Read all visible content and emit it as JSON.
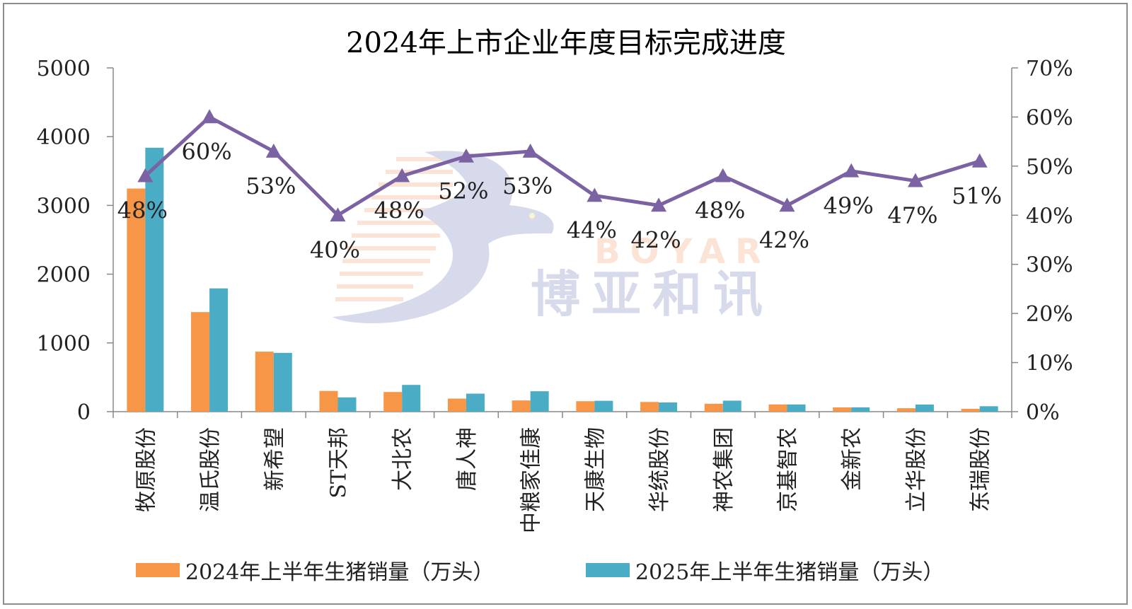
{
  "chart_data": {
    "type": "bar",
    "title": "2024年上市企业年度目标完成进度",
    "categories": [
      "牧原股份",
      "温氏股份",
      "新希望",
      "ST天邦",
      "大北农",
      "唐人神",
      "中粮家佳康",
      "天康生物",
      "华统股份",
      "神农集团",
      "京基智农",
      "金新农",
      "立华股份",
      "东瑞股份"
    ],
    "series": [
      {
        "name": "2024年上半年生猪销量（万头）",
        "type": "bar",
        "axis": "left",
        "color": "#F79646",
        "values": [
          3245,
          1448,
          873,
          301,
          286,
          190,
          163,
          152,
          141,
          115,
          105,
          62,
          50,
          41
        ]
      },
      {
        "name": "2025年上半年生猪销量（万头）",
        "type": "bar",
        "axis": "left",
        "color": "#4BACC6",
        "values": [
          3839,
          1793,
          855,
          208,
          389,
          262,
          297,
          158,
          134,
          160,
          105,
          63,
          104,
          79
        ]
      },
      {
        "type": "line",
        "axis": "right",
        "color": "#7B62A3",
        "values": [
          48,
          60,
          53,
          40,
          48,
          52,
          53,
          44,
          42,
          48,
          42,
          49,
          47,
          51
        ],
        "labels": [
          "48%",
          "60%",
          "53%",
          "40%",
          "48%",
          "52%",
          "53%",
          "44%",
          "42%",
          "48%",
          "42%",
          "49%",
          "47%",
          "51%"
        ]
      }
    ],
    "y_left": {
      "min": 0,
      "max": 5000,
      "ticks": [
        0,
        1000,
        2000,
        3000,
        4000,
        5000
      ],
      "tick_labels": [
        "0",
        "1000",
        "2000",
        "3000",
        "4000",
        "5000"
      ]
    },
    "y_right": {
      "min": 0,
      "max": 70,
      "ticks": [
        0,
        10,
        20,
        30,
        40,
        50,
        60,
        70
      ],
      "tick_labels": [
        "0%",
        "10%",
        "20%",
        "30%",
        "40%",
        "50%",
        "60%",
        "70%"
      ]
    },
    "grid": false,
    "legend_position": "bottom"
  },
  "watermark": {
    "latin": "BOYAR",
    "chinese": "博亚和讯"
  }
}
